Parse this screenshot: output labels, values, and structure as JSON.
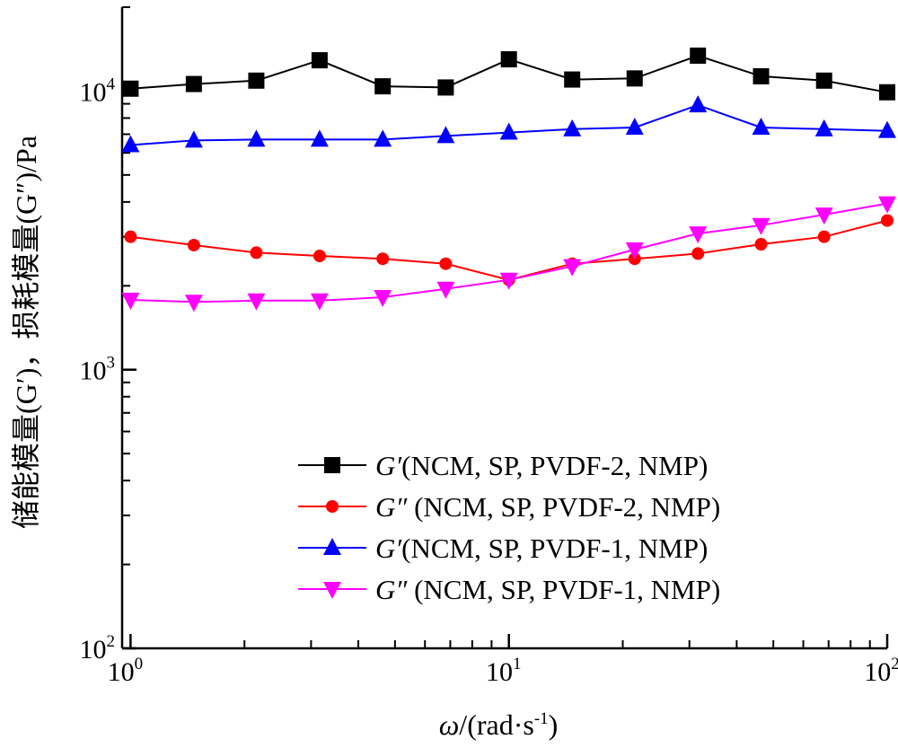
{
  "chart_data": {
    "type": "line",
    "x_scale": "log",
    "y_scale": "log",
    "xlim": [
      0.95,
      100
    ],
    "ylim": [
      100,
      20000
    ],
    "grid": false,
    "legend_position": "bottom-right",
    "xlabel": {
      "symbol": "ω",
      "unit": "/(rad·s",
      "sup": "-1",
      "close": ")"
    },
    "ylabel": "储能模量(G′)，损耗模量(G″)/Pa",
    "x_ticks": [
      {
        "value": 1,
        "base": "10",
        "exp": "0"
      },
      {
        "value": 10,
        "base": "10",
        "exp": "1"
      },
      {
        "value": 100,
        "base": "10",
        "exp": "2"
      }
    ],
    "y_ticks": [
      {
        "value": 100,
        "base": "10",
        "exp": "2"
      },
      {
        "value": 1000,
        "base": "10",
        "exp": "3"
      },
      {
        "value": 10000,
        "base": "10",
        "exp": "4"
      }
    ],
    "x": [
      1.0,
      1.47,
      2.15,
      3.16,
      4.64,
      6.81,
      10.0,
      14.7,
      21.5,
      31.6,
      46.4,
      68.1,
      100.0
    ],
    "series": [
      {
        "symbol": "G′",
        "name": "(NCM, SP, PVDF-2, NMP)",
        "color": "#000000",
        "marker": "square",
        "values": [
          10200,
          10600,
          10900,
          12900,
          10400,
          10300,
          13000,
          11000,
          11100,
          13400,
          11300,
          10900,
          9900
        ]
      },
      {
        "symbol": "G″",
        "name": " (NCM, SP, PVDF-2, NMP)",
        "color": "#ff0000",
        "marker": "circle",
        "values": [
          3000,
          2800,
          2630,
          2560,
          2500,
          2400,
          2100,
          2400,
          2500,
          2610,
          2820,
          3000,
          3430
        ]
      },
      {
        "symbol": "G′",
        "name": "(NCM, SP, PVDF-1, NMP)",
        "color": "#0000ff",
        "marker": "triangle-up",
        "values": [
          6400,
          6650,
          6700,
          6700,
          6700,
          6900,
          7100,
          7300,
          7400,
          8900,
          7400,
          7300,
          7200
        ]
      },
      {
        "symbol": "G″",
        "name": " (NCM, SP, PVDF-1, NMP)",
        "color": "#ff00ff",
        "marker": "triangle-down",
        "values": [
          1780,
          1750,
          1770,
          1770,
          1820,
          1950,
          2100,
          2350,
          2700,
          3080,
          3300,
          3600,
          3950
        ]
      }
    ]
  }
}
